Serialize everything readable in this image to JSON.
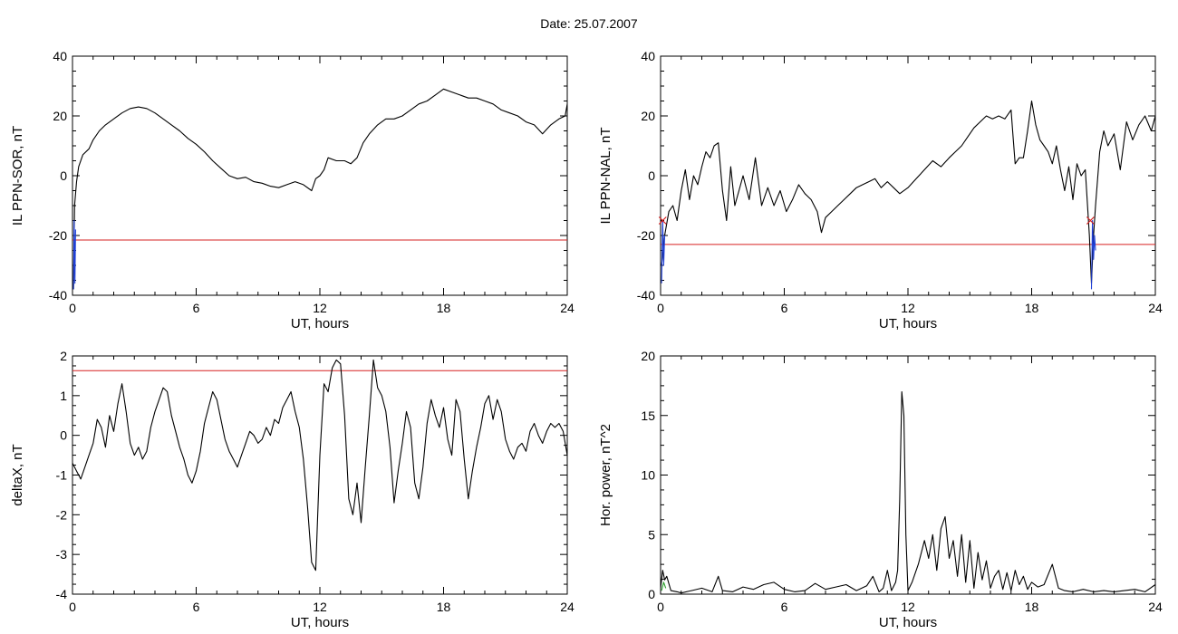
{
  "title": "Date:  25.07.2007",
  "chart_data": [
    {
      "type": "line",
      "xlabel": "UT, hours",
      "ylabel": "IL PPN-SOR, nT",
      "xlim": [
        0,
        24
      ],
      "ylim": [
        -40,
        40
      ],
      "xticks": [
        "0",
        "6",
        "12",
        "18",
        "24"
      ],
      "yticks": [
        "-40",
        "-20",
        "0",
        "20",
        "40"
      ],
      "threshold": -21.5,
      "series": [
        {
          "color": "#000000",
          "x": [
            0.05,
            0.1,
            0.2,
            0.3,
            0.5,
            0.8,
            1.0,
            1.3,
            1.6,
            2.0,
            2.4,
            2.8,
            3.2,
            3.6,
            4.0,
            4.4,
            4.8,
            5.2,
            5.6,
            6.0,
            6.4,
            6.8,
            7.2,
            7.6,
            8.0,
            8.4,
            8.8,
            9.2,
            9.6,
            10.0,
            10.4,
            10.8,
            11.2,
            11.6,
            11.8,
            12.0,
            12.2,
            12.4,
            12.8,
            13.2,
            13.5,
            13.8,
            14.1,
            14.4,
            14.8,
            15.2,
            15.6,
            16.0,
            16.4,
            16.8,
            17.2,
            17.6,
            18.0,
            18.4,
            18.8,
            19.2,
            19.6,
            20.0,
            20.4,
            20.8,
            21.2,
            21.6,
            22.0,
            22.4,
            22.8,
            23.2,
            23.6,
            23.9,
            24.0
          ],
          "y": [
            -38,
            -10,
            -2,
            3,
            7,
            9,
            12,
            15,
            17,
            19,
            21,
            22.5,
            23,
            22.5,
            21,
            19,
            17,
            15,
            12.5,
            10.5,
            8,
            5,
            2.5,
            0,
            -1,
            -0.5,
            -2,
            -2.5,
            -3.5,
            -4,
            -3,
            -2,
            -3,
            -5,
            -1,
            0,
            2,
            6,
            5,
            5,
            4,
            6,
            11,
            14,
            17,
            19,
            19,
            20,
            22,
            24,
            25,
            27,
            29,
            28,
            27,
            26,
            26,
            25,
            24,
            22,
            21,
            20,
            18,
            17,
            14,
            17,
            19,
            20,
            24
          ]
        },
        {
          "color": "#1f3fd6",
          "x": [
            0.05,
            0.08,
            0.12,
            0.15
          ],
          "y": [
            -38,
            -15,
            -36,
            -18
          ]
        }
      ]
    },
    {
      "type": "line",
      "xlabel": "UT, hours",
      "ylabel": "IL PPN-NAL, nT",
      "xlim": [
        0,
        24
      ],
      "ylim": [
        -40,
        40
      ],
      "xticks": [
        "0",
        "6",
        "12",
        "18",
        "24"
      ],
      "yticks": [
        "-40",
        "-20",
        "0",
        "20",
        "40"
      ],
      "threshold": -23,
      "series": [
        {
          "color": "#000000",
          "x": [
            0.05,
            0.2,
            0.4,
            0.6,
            0.8,
            1.0,
            1.2,
            1.4,
            1.6,
            1.8,
            2.0,
            2.2,
            2.4,
            2.6,
            2.8,
            3.0,
            3.2,
            3.4,
            3.6,
            3.8,
            4.0,
            4.3,
            4.6,
            4.9,
            5.2,
            5.5,
            5.8,
            6.1,
            6.4,
            6.7,
            7.0,
            7.3,
            7.6,
            7.8,
            8.0,
            8.3,
            8.6,
            8.9,
            9.2,
            9.5,
            9.8,
            10.1,
            10.4,
            10.7,
            11.0,
            11.3,
            11.6,
            12.0,
            12.4,
            12.8,
            13.2,
            13.6,
            14.0,
            14.3,
            14.6,
            14.9,
            15.2,
            15.5,
            15.8,
            16.1,
            16.4,
            16.7,
            17.0,
            17.1,
            17.2,
            17.4,
            17.6,
            17.8,
            18.0,
            18.2,
            18.4,
            18.6,
            18.8,
            19.0,
            19.2,
            19.4,
            19.6,
            19.8,
            20.0,
            20.2,
            20.4,
            20.6,
            20.8,
            20.9,
            21.0,
            21.1,
            21.3,
            21.5,
            21.7,
            22.0,
            22.3,
            22.6,
            22.9,
            23.2,
            23.5,
            23.8,
            24.0
          ],
          "y": [
            -30,
            -20,
            -12,
            -10,
            -15,
            -5,
            2,
            -8,
            0,
            -3,
            3,
            8,
            6,
            10,
            11,
            -5,
            -15,
            3,
            -10,
            -5,
            0,
            -8,
            6,
            -10,
            -4,
            -10,
            -5,
            -12,
            -8,
            -3,
            -6,
            -8,
            -12,
            -19,
            -14,
            -12,
            -10,
            -8,
            -6,
            -4,
            -3,
            -2,
            -1,
            -4,
            -2,
            -4,
            -6,
            -4,
            -1,
            2,
            5,
            3,
            6,
            8,
            10,
            13,
            16,
            18,
            20,
            19,
            20,
            19,
            22,
            13,
            4,
            6,
            6,
            15,
            25,
            17,
            12,
            10,
            8,
            4,
            10,
            2,
            -5,
            3,
            -8,
            4,
            0,
            2,
            -20,
            -36,
            -20,
            -10,
            8,
            15,
            10,
            14,
            2,
            18,
            12,
            17,
            20,
            15,
            20
          ]
        },
        {
          "color": "#1f3fd6",
          "x": [
            0.05,
            0.1,
            0.15,
            0.2
          ],
          "y": [
            -36,
            -15,
            -30,
            -20
          ]
        },
        {
          "color": "#1f3fd6",
          "x": [
            20.9,
            20.95,
            21.0,
            21.05,
            21.1
          ],
          "y": [
            -38,
            -15,
            -28,
            -20,
            -25
          ]
        }
      ],
      "markers": [
        {
          "symbol": "x",
          "color": "#d62020",
          "x": 0.1,
          "y": -15
        },
        {
          "symbol": "x",
          "color": "#d62020",
          "x": 20.85,
          "y": -15
        }
      ]
    },
    {
      "type": "line",
      "xlabel": "UT, hours",
      "ylabel": "deltaX, nT",
      "xlim": [
        0,
        24
      ],
      "ylim": [
        -4,
        2
      ],
      "xticks": [
        "0",
        "6",
        "12",
        "18",
        "24"
      ],
      "yticks": [
        "-4",
        "-3",
        "-2",
        "-1",
        "0",
        "1",
        "2"
      ],
      "threshold": 1.63,
      "series": [
        {
          "color": "#000000",
          "x": [
            0.0,
            0.2,
            0.4,
            0.6,
            0.8,
            1.0,
            1.2,
            1.4,
            1.6,
            1.8,
            2.0,
            2.2,
            2.4,
            2.6,
            2.8,
            3.0,
            3.2,
            3.4,
            3.6,
            3.8,
            4.0,
            4.2,
            4.4,
            4.6,
            4.8,
            5.0,
            5.2,
            5.4,
            5.6,
            5.8,
            6.0,
            6.2,
            6.4,
            6.6,
            6.8,
            7.0,
            7.2,
            7.4,
            7.6,
            7.8,
            8.0,
            8.2,
            8.4,
            8.6,
            8.8,
            9.0,
            9.2,
            9.4,
            9.6,
            9.8,
            10.0,
            10.2,
            10.4,
            10.6,
            10.8,
            11.0,
            11.2,
            11.4,
            11.6,
            11.8,
            12.0,
            12.2,
            12.4,
            12.6,
            12.8,
            13.0,
            13.2,
            13.4,
            13.6,
            13.8,
            14.0,
            14.2,
            14.4,
            14.6,
            14.8,
            15.0,
            15.2,
            15.4,
            15.6,
            15.8,
            16.0,
            16.2,
            16.4,
            16.6,
            16.8,
            17.0,
            17.2,
            17.4,
            17.6,
            17.8,
            18.0,
            18.2,
            18.4,
            18.6,
            18.8,
            19.0,
            19.2,
            19.4,
            19.6,
            19.8,
            20.0,
            20.2,
            20.4,
            20.6,
            20.8,
            21.0,
            21.2,
            21.4,
            21.6,
            21.8,
            22.0,
            22.2,
            22.4,
            22.6,
            22.8,
            23.0,
            23.2,
            23.4,
            23.6,
            23.8,
            24.0
          ],
          "y": [
            -0.7,
            -0.9,
            -1.1,
            -0.8,
            -0.5,
            -0.2,
            0.4,
            0.2,
            -0.3,
            0.5,
            0.1,
            0.8,
            1.3,
            0.6,
            -0.2,
            -0.5,
            -0.3,
            -0.6,
            -0.4,
            0.2,
            0.6,
            0.9,
            1.2,
            1.1,
            0.5,
            0.1,
            -0.3,
            -0.6,
            -1.0,
            -1.2,
            -0.9,
            -0.4,
            0.3,
            0.7,
            1.1,
            0.9,
            0.4,
            -0.1,
            -0.4,
            -0.6,
            -0.8,
            -0.5,
            -0.2,
            0.1,
            0.0,
            -0.2,
            -0.1,
            0.2,
            0.0,
            0.4,
            0.3,
            0.7,
            0.9,
            1.1,
            0.6,
            0.2,
            -0.6,
            -1.8,
            -3.2,
            -3.4,
            -0.5,
            1.3,
            1.1,
            1.7,
            1.9,
            1.8,
            0.5,
            -1.6,
            -2.0,
            -1.2,
            -2.2,
            -0.8,
            0.5,
            1.9,
            1.2,
            1.0,
            0.6,
            -0.3,
            -1.7,
            -0.9,
            -0.2,
            0.6,
            0.2,
            -1.2,
            -1.6,
            -0.8,
            0.3,
            0.9,
            0.5,
            0.2,
            0.7,
            -0.1,
            -0.5,
            0.9,
            0.6,
            -0.6,
            -1.6,
            -0.9,
            -0.3,
            0.2,
            0.8,
            1.0,
            0.4,
            0.9,
            0.6,
            -0.1,
            -0.4,
            -0.6,
            -0.3,
            -0.2,
            -0.4,
            0.1,
            0.3,
            0.0,
            -0.2,
            0.1,
            0.3,
            0.2,
            0.3,
            0.1,
            -0.5
          ]
        }
      ]
    },
    {
      "type": "line",
      "xlabel": "UT, hours",
      "ylabel": "Hor. power, nT^2",
      "xlim": [
        0,
        24
      ],
      "ylim": [
        0,
        20
      ],
      "xticks": [
        "0",
        "6",
        "12",
        "18",
        "24"
      ],
      "yticks": [
        "0",
        "5",
        "10",
        "15",
        "20"
      ],
      "series": [
        {
          "color": "#000000",
          "x": [
            0.0,
            0.1,
            0.2,
            0.3,
            0.5,
            0.8,
            1.0,
            1.5,
            2.0,
            2.5,
            2.8,
            3.0,
            3.5,
            4.0,
            4.5,
            5.0,
            5.5,
            6.0,
            6.5,
            7.0,
            7.5,
            8.0,
            8.5,
            9.0,
            9.5,
            10.0,
            10.3,
            10.6,
            10.8,
            11.0,
            11.2,
            11.4,
            11.5,
            11.6,
            11.7,
            11.8,
            11.9,
            12.0,
            12.2,
            12.5,
            12.8,
            13.0,
            13.2,
            13.4,
            13.6,
            13.8,
            14.0,
            14.2,
            14.4,
            14.6,
            14.8,
            15.0,
            15.2,
            15.4,
            15.6,
            15.8,
            16.0,
            16.2,
            16.4,
            16.6,
            16.8,
            17.0,
            17.2,
            17.4,
            17.6,
            17.8,
            18.0,
            18.3,
            18.6,
            19.0,
            19.3,
            19.6,
            20.0,
            20.5,
            21.0,
            21.5,
            22.0,
            22.5,
            23.0,
            23.5,
            24.0
          ],
          "y": [
            0.5,
            2.0,
            1.2,
            1.5,
            0.3,
            0.2,
            0.1,
            0.3,
            0.5,
            0.2,
            1.5,
            0.3,
            0.2,
            0.6,
            0.4,
            0.8,
            1.0,
            0.4,
            0.2,
            0.3,
            0.9,
            0.4,
            0.6,
            0.8,
            0.3,
            0.7,
            1.5,
            0.2,
            0.5,
            2.0,
            0.3,
            1.0,
            2.0,
            8.0,
            17.0,
            15.0,
            5.0,
            0.3,
            1.0,
            2.5,
            4.5,
            3.0,
            5.0,
            2.0,
            5.5,
            6.5,
            3.0,
            4.5,
            1.5,
            5.0,
            1.0,
            4.5,
            0.5,
            3.5,
            1.2,
            2.8,
            0.5,
            1.5,
            2.0,
            0.4,
            1.8,
            0.3,
            2.0,
            0.8,
            1.5,
            0.4,
            1.0,
            0.6,
            0.8,
            2.5,
            0.5,
            0.3,
            0.2,
            0.4,
            0.2,
            0.3,
            0.2,
            0.3,
            0.4,
            0.2,
            0.8
          ]
        },
        {
          "color": "#2a9d2a",
          "x": [
            0.05,
            0.15,
            0.25
          ],
          "y": [
            0.3,
            1.0,
            0.5
          ]
        }
      ]
    }
  ]
}
